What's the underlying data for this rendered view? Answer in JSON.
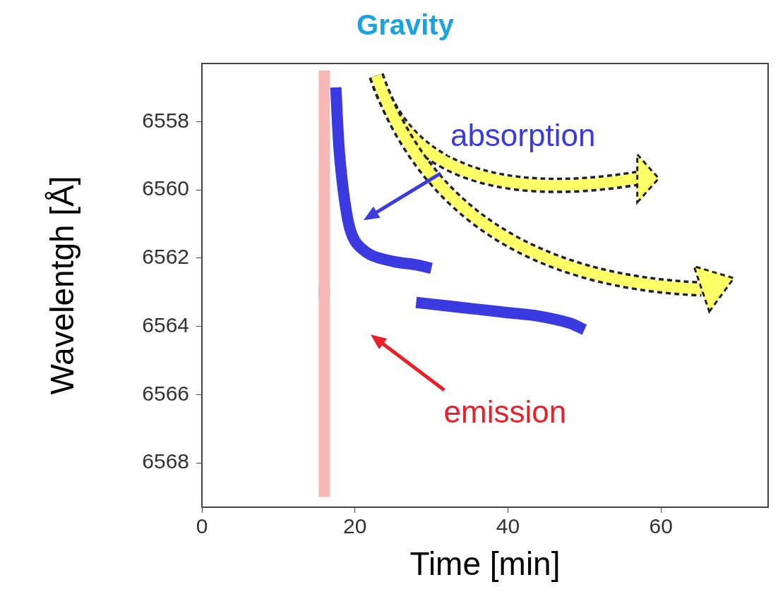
{
  "chart_data": {
    "type": "scatter",
    "title": "Gravity",
    "x_label": "Time [min]",
    "y_label": "Wavelentgh [Å]",
    "xlim": [
      0,
      74
    ],
    "xticks": [
      0,
      20,
      40,
      60
    ],
    "ylim": [
      6569.3,
      6556.3
    ],
    "yticks": [
      6558,
      6560,
      6562,
      6564,
      6566,
      6568
    ],
    "grid": false,
    "series": [
      {
        "color": "#f7b8b8",
        "line_style": "solid",
        "x": [
          16,
          16,
          16
        ],
        "values": [
          6556.5,
          6563,
          6569
        ]
      },
      {
        "color": "#e31b1b",
        "marker": "square",
        "x": [
          16
        ],
        "values": [
          6563
        ]
      },
      {
        "color": "#3a3ae0",
        "line_style": "solid",
        "x": [
          17.5,
          18,
          19,
          20,
          22,
          25,
          28,
          30
        ],
        "values": [
          6557,
          6559,
          6560.8,
          6561.5,
          6561.9,
          6562.1,
          6562.2,
          6562.3
        ]
      },
      {
        "color": "#3a3ae0",
        "line_style": "solid",
        "x": [
          28,
          32,
          36,
          40,
          44,
          48,
          50
        ],
        "values": [
          6563.3,
          6563.4,
          6563.5,
          6563.6,
          6563.7,
          6563.9,
          6564.1
        ]
      }
    ],
    "annotations": [
      {
        "text": "absorption",
        "color": "#3c3cdc"
      },
      {
        "text": "emission",
        "color": "#e8202a"
      }
    ]
  }
}
